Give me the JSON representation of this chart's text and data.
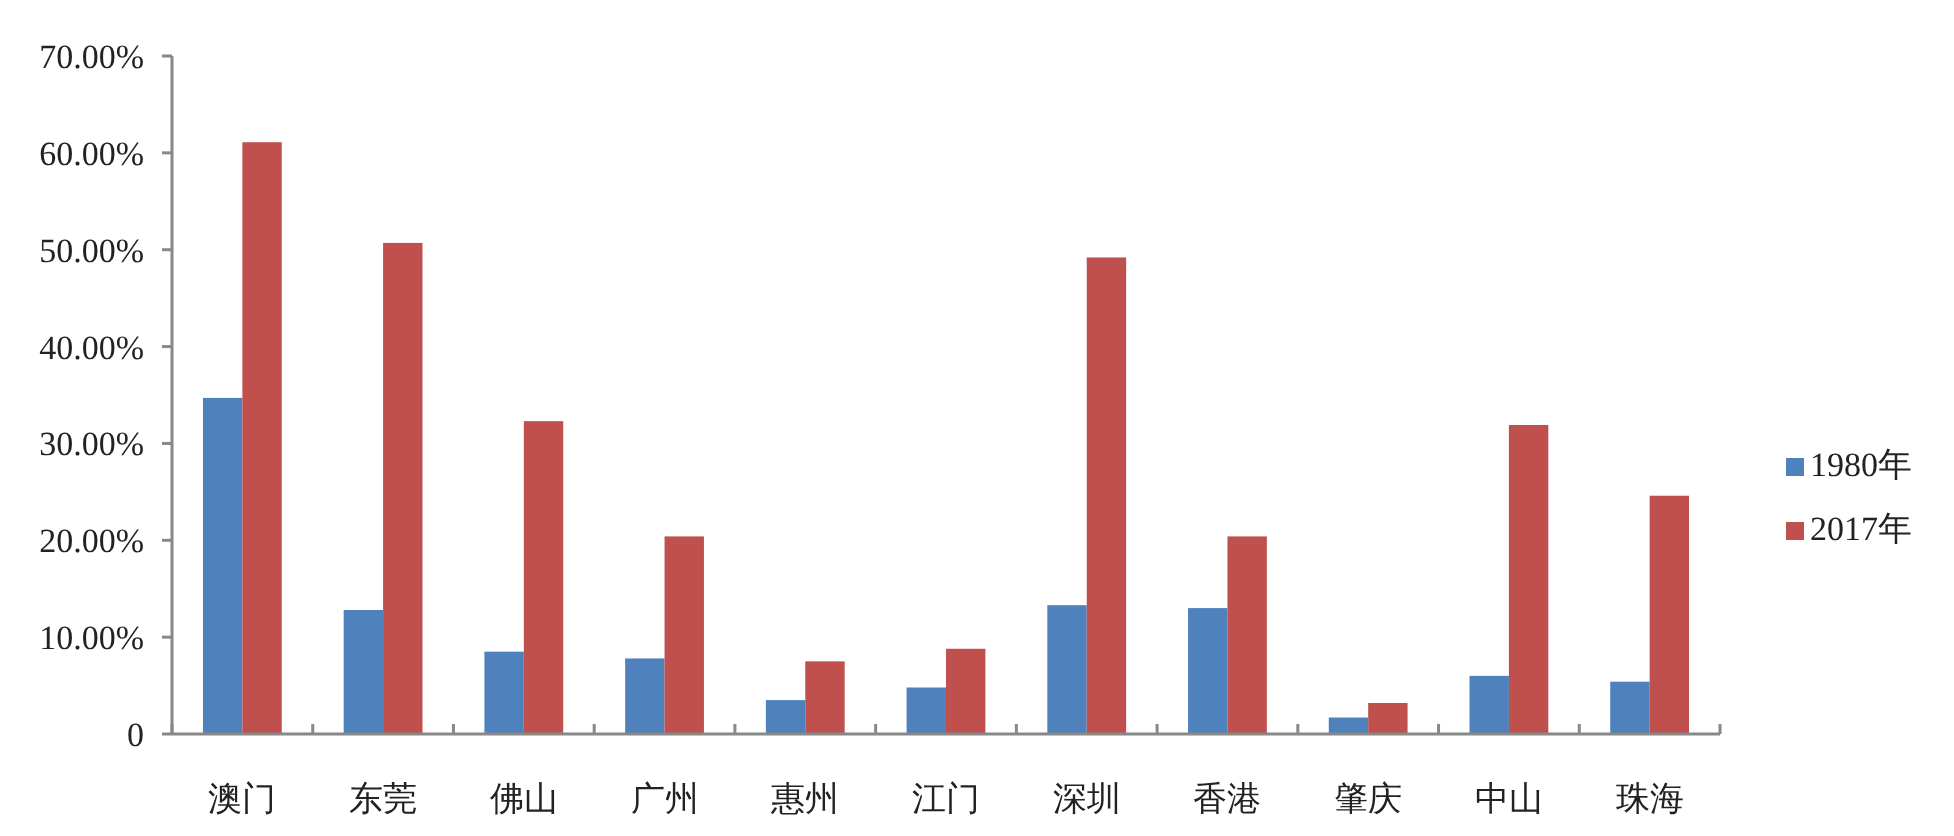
{
  "chart_data": {
    "type": "bar",
    "categories": [
      "澳门",
      "东莞",
      "佛山",
      "广州",
      "惠州",
      "江门",
      "深圳",
      "香港",
      "肇庆",
      "中山",
      "珠海"
    ],
    "series": [
      {
        "name": "1980年",
        "color": "#4f81bd",
        "values": [
          34.7,
          12.8,
          8.5,
          7.8,
          3.5,
          4.8,
          13.3,
          13.0,
          1.7,
          6.0,
          5.4
        ]
      },
      {
        "name": "2017年",
        "color": "#c0504d",
        "values": [
          61.1,
          50.7,
          32.3,
          20.4,
          7.5,
          8.8,
          49.2,
          20.4,
          3.2,
          31.9,
          24.6
        ]
      }
    ],
    "ylim": [
      0,
      70
    ],
    "yticks": [
      0,
      {
        "value": 10,
        "label": "10.00%"
      },
      {
        "value": 20,
        "label": "20.00%"
      },
      {
        "value": 30,
        "label": "30.00%"
      },
      {
        "value": 40,
        "label": "40.00%"
      },
      {
        "value": 50,
        "label": "50.00%"
      },
      {
        "value": 60,
        "label": "60.00%"
      },
      {
        "value": 70,
        "label": "70.00%"
      }
    ],
    "grid": false,
    "legend": "right"
  }
}
